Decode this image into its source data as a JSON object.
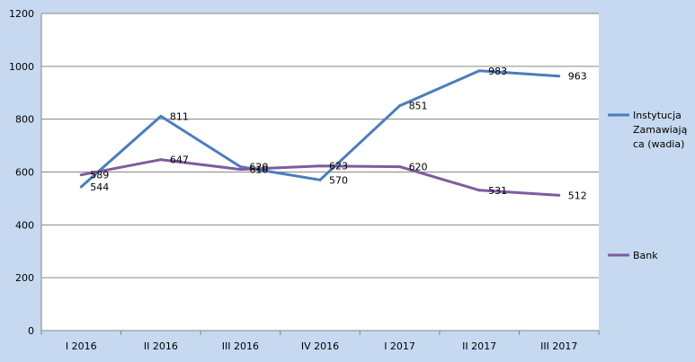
{
  "chart_data": {
    "type": "line",
    "categories": [
      "I 2016",
      "II 2016",
      "III 2016",
      "IV 2016",
      "I 2017",
      "II 2017",
      "III 2017"
    ],
    "series": [
      {
        "name": "Instytucja Zamawiają ca (wadia)",
        "legend_lines": [
          "Instytucja",
          "Zamawiają",
          "ca (wadia)"
        ],
        "color": "#4a7ebb",
        "values": [
          544,
          811,
          620,
          570,
          851,
          983,
          963
        ]
      },
      {
        "name": "Bank",
        "legend_lines": [
          "Bank"
        ],
        "color": "#7e5ba0",
        "values": [
          589,
          647,
          610,
          623,
          620,
          531,
          512
        ]
      }
    ],
    "yticks": [
      0,
      200,
      400,
      600,
      800,
      1000,
      1200
    ],
    "ylim": [
      0,
      1200
    ],
    "grid": true,
    "legend_position": "right",
    "plot_background": "#ffffff",
    "chart_background": "#c6d9f1"
  }
}
